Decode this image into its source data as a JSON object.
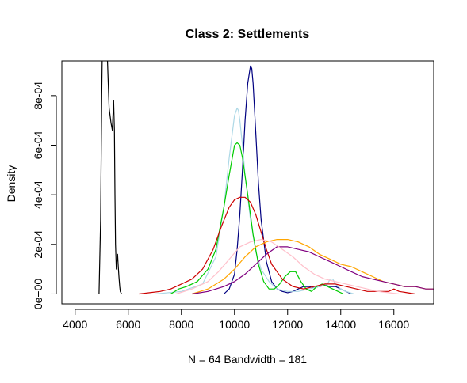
{
  "chart_data": {
    "type": "line",
    "title": "Class 2: Settlements",
    "xlabel": "N = 64   Bandwidth = 181",
    "ylabel": "Density",
    "xlim": [
      3500,
      17500
    ],
    "ylim": [
      -4e-05,
      0.00094
    ],
    "grid": false,
    "x_ticks": [
      4000,
      6000,
      8000,
      10000,
      12000,
      14000,
      16000
    ],
    "x_tick_labels": [
      "4000",
      "6000",
      "8000",
      "10000",
      "12000",
      "14000",
      "16000"
    ],
    "y_ticks": [
      0,
      0.0002,
      0.0004,
      0.0006,
      0.0008
    ],
    "y_tick_labels": [
      "0e+00",
      "2e-04",
      "4e-04",
      "6e-04",
      "8e-04"
    ],
    "series": [
      {
        "color": "#000000",
        "x": [
          4900,
          4960,
          5000,
          5050,
          5100,
          5200,
          5280,
          5350,
          5400,
          5420,
          5450,
          5480,
          5500,
          5520,
          5550,
          5580,
          5600,
          5620,
          5650,
          5680,
          5700,
          5750
        ],
        "y": [
          0,
          0.0003,
          0.0008,
          0.0012,
          0.0013,
          0.001,
          0.00075,
          0.00069,
          0.00066,
          0.00071,
          0.00078,
          0.00066,
          0.0004,
          0.0002,
          0.0001,
          0.00014,
          0.00016,
          0.00012,
          7e-05,
          3e-05,
          1e-05,
          0
        ]
      },
      {
        "color": "#000080",
        "x": [
          9600,
          9800,
          10000,
          10100,
          10200,
          10300,
          10400,
          10500,
          10600,
          10650,
          10700,
          10800,
          10900,
          11000,
          11200,
          11400,
          11600,
          11800,
          12000,
          12200,
          12400,
          12600,
          12800,
          13000,
          13200,
          13400,
          13600,
          13800,
          14000,
          14200,
          14400
        ],
        "y": [
          0,
          2e-05,
          8e-05,
          0.00018,
          0.00032,
          0.0005,
          0.0007,
          0.00085,
          0.00092,
          0.00091,
          0.00085,
          0.00065,
          0.00045,
          0.0003,
          0.00013,
          5e-05,
          2e-05,
          1e-05,
          5e-06,
          1e-05,
          2e-05,
          3e-05,
          3e-05,
          2.5e-05,
          3e-05,
          3.5e-05,
          3e-05,
          3e-05,
          2e-05,
          1e-05,
          0
        ]
      },
      {
        "color": "#add8e6",
        "x": [
          7000,
          8000,
          8800,
          9300,
          9600,
          9800,
          10000,
          10100,
          10150,
          10200,
          10300,
          10400,
          10600,
          10800,
          11000,
          11300,
          11600,
          12000,
          12400,
          12800,
          13200,
          13500,
          13600,
          13700,
          13800,
          14000,
          14200,
          14500
        ],
        "y": [
          0,
          1e-05,
          4e-05,
          0.00015,
          0.00035,
          0.00055,
          0.00072,
          0.00075,
          0.00074,
          0.0007,
          0.0006,
          0.00048,
          0.0003,
          0.00017,
          0.0001,
          5e-05,
          2e-05,
          1e-05,
          1e-05,
          2e-05,
          3e-05,
          4e-05,
          6e-05,
          6e-05,
          4e-05,
          2e-05,
          1e-05,
          0
        ]
      },
      {
        "color": "#00cc00",
        "x": [
          7600,
          7900,
          8200,
          8600,
          9000,
          9300,
          9600,
          9800,
          10000,
          10100,
          10200,
          10300,
          10500,
          10700,
          10900,
          11100,
          11300,
          11500,
          11700,
          11900,
          12100,
          12300,
          12500,
          12700,
          12900,
          13100,
          13300,
          13500,
          13700,
          13900,
          14100
        ],
        "y": [
          0,
          2e-05,
          3e-05,
          5e-05,
          0.0001,
          0.00018,
          0.00035,
          0.00048,
          0.0006,
          0.00061,
          0.0006,
          0.00055,
          0.0004,
          0.00024,
          0.00012,
          5e-05,
          2e-05,
          2e-05,
          4e-05,
          7e-05,
          9e-05,
          9e-05,
          5e-05,
          2e-05,
          1e-05,
          3e-05,
          4e-05,
          3e-05,
          2e-05,
          1e-05,
          0
        ]
      },
      {
        "color": "#cc0000",
        "x": [
          6400,
          6800,
          7200,
          7600,
          8000,
          8400,
          8800,
          9200,
          9500,
          9800,
          10000,
          10200,
          10400,
          10600,
          10800,
          11000,
          11200,
          11400,
          11800,
          12200,
          12600,
          13000,
          13400,
          13800,
          14200,
          14600,
          15000,
          15400,
          15800,
          16000,
          16200,
          16500,
          16800
        ],
        "y": [
          0,
          5e-06,
          1e-05,
          2e-05,
          4e-05,
          6e-05,
          0.0001,
          0.00018,
          0.00027,
          0.00035,
          0.00038,
          0.00039,
          0.00039,
          0.00037,
          0.00032,
          0.00025,
          0.00018,
          0.00012,
          6e-05,
          3e-05,
          2e-05,
          3e-05,
          4e-05,
          4e-05,
          3e-05,
          2e-05,
          1e-05,
          1e-05,
          1e-05,
          2e-05,
          1e-05,
          5e-06,
          0
        ]
      },
      {
        "color": "#ffa500",
        "x": [
          8400,
          9000,
          9600,
          10000,
          10400,
          10800,
          11200,
          11600,
          12000,
          12400,
          12800,
          13200,
          13600,
          14000,
          14400,
          14800,
          15200,
          15600,
          16000,
          16400,
          16800,
          17200,
          17500
        ],
        "y": [
          0,
          2e-05,
          6e-05,
          0.0001,
          0.00015,
          0.00019,
          0.00021,
          0.00022,
          0.00022,
          0.00021,
          0.00019,
          0.00016,
          0.00014,
          0.00012,
          0.00011,
          9e-05,
          7e-05,
          5e-05,
          4e-05,
          3e-05,
          3e-05,
          2e-05,
          2e-05
        ]
      },
      {
        "color": "#800080",
        "x": [
          8400,
          9000,
          9600,
          10000,
          10400,
          10800,
          11200,
          11600,
          12000,
          12400,
          12800,
          13200,
          13600,
          14000,
          14400,
          14800,
          15200,
          15600,
          16000,
          16400,
          16800,
          17200,
          17500
        ],
        "y": [
          0,
          1e-05,
          3e-05,
          5e-05,
          8e-05,
          0.00012,
          0.00016,
          0.00019,
          0.00019,
          0.00018,
          0.00017,
          0.00015,
          0.00013,
          0.00011,
          9e-05,
          7e-05,
          6e-05,
          5e-05,
          4e-05,
          3e-05,
          3e-05,
          2e-05,
          2e-05
        ]
      },
      {
        "color": "#ffc0cb",
        "x": [
          7800,
          8400,
          9000,
          9400,
          9800,
          10200,
          10600,
          11000,
          11400,
          11800,
          12200,
          12600,
          13000,
          13400,
          13800,
          14200,
          14600,
          15000,
          15400,
          15800,
          16200
        ],
        "y": [
          0,
          2e-05,
          5e-05,
          9e-05,
          0.00014,
          0.00019,
          0.00021,
          0.00022,
          0.00021,
          0.00018,
          0.00015,
          0.00011,
          8e-05,
          6e-05,
          5e-05,
          4e-05,
          3e-05,
          2e-05,
          1e-05,
          5e-06,
          0
        ]
      }
    ],
    "baseline": {
      "y": 0,
      "color": "#bebebe"
    }
  }
}
